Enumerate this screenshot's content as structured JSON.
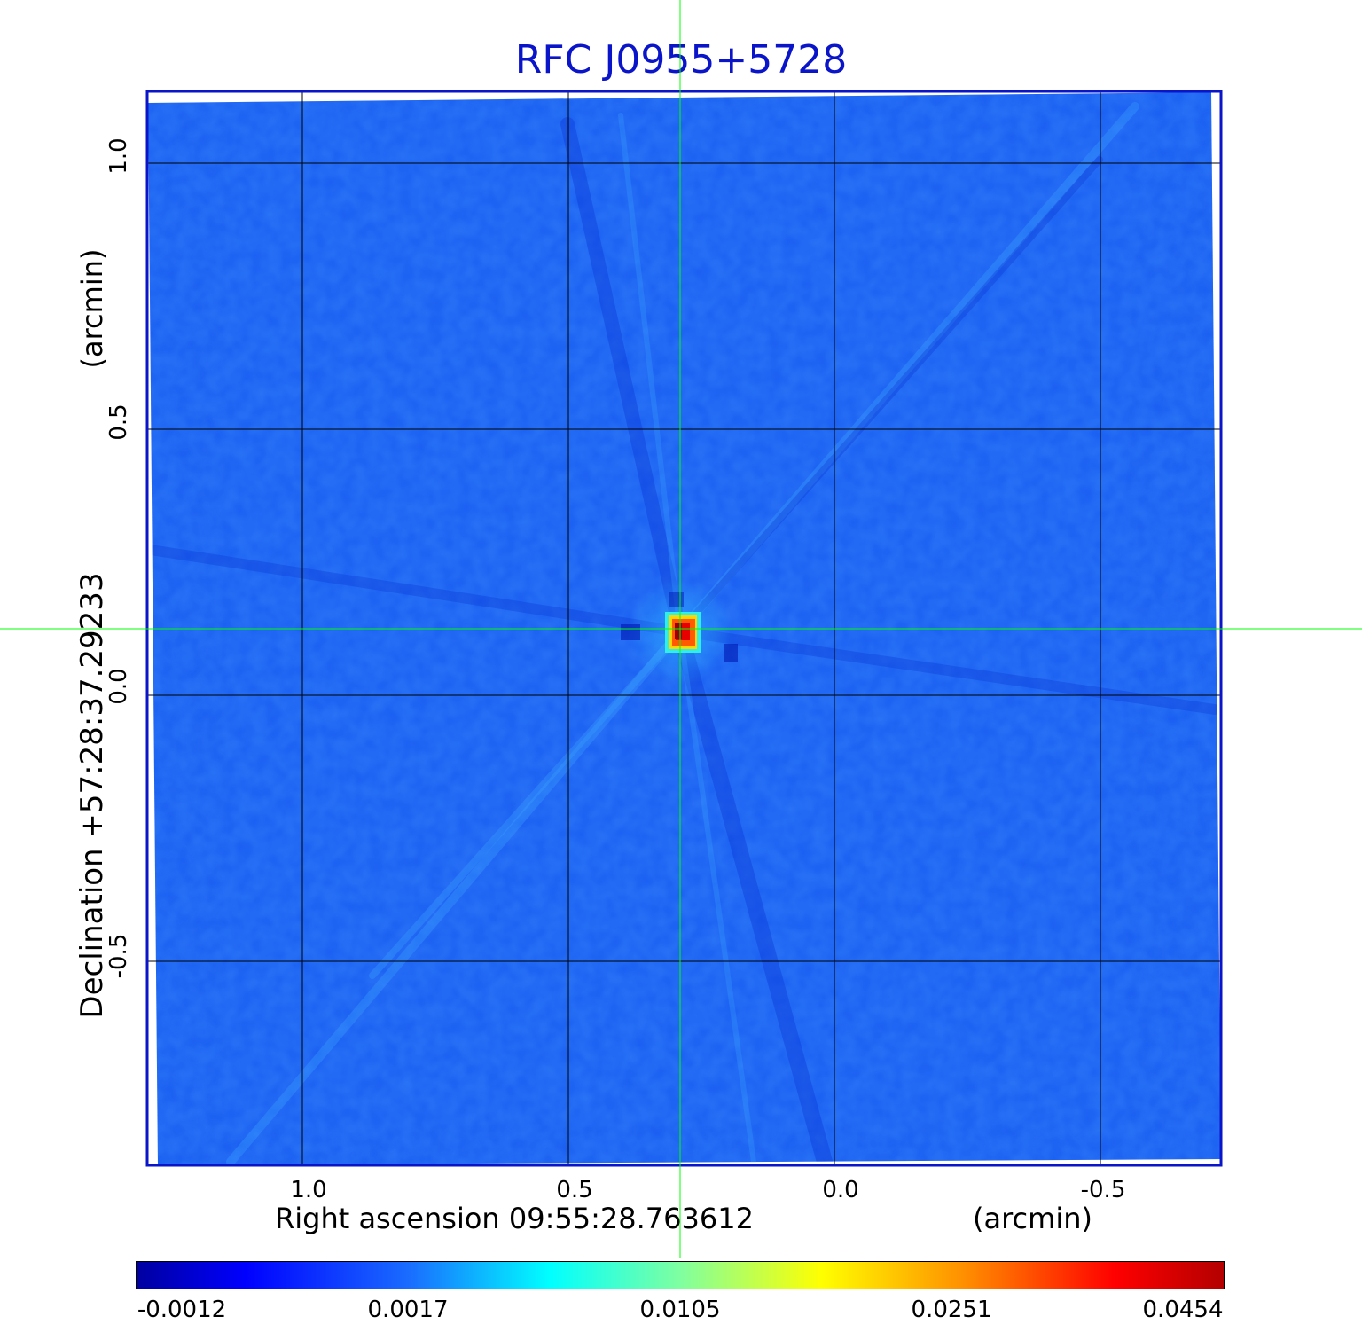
{
  "title": "RFC J0955+5728",
  "axes": {
    "x_label": "Right ascension  09:55:28.763612",
    "x_unit": "(arcmin)",
    "y_label": "Declination  +57:28:37.29233",
    "y_unit": "(arcmin)",
    "x_ticks": [
      "1.0",
      "0.5",
      "0.0",
      "-0.5"
    ],
    "y_ticks": [
      "1.0",
      "0.5",
      "0.0",
      "-0.5"
    ]
  },
  "colorbar": {
    "colormap": "jet",
    "labels": [
      "-0.0012",
      "0.0017",
      "0.0105",
      "0.0251",
      "0.0454"
    ]
  },
  "colors": {
    "title": "#0a14c8",
    "frame": "#0a14c8",
    "crosshair": "#00ff00",
    "background_field": "#1a5cf0",
    "source_peak": "#b40000"
  },
  "chart_data": {
    "type": "heatmap",
    "title": "RFC J0955+5728",
    "xlabel": "Right ascension  09:55:28.763612",
    "ylabel": "Declination  +57:28:37.29233",
    "x_unit": "arcmin",
    "y_unit": "arcmin",
    "xlim": [
      1.29,
      -0.73
    ],
    "ylim": [
      -0.88,
      1.14
    ],
    "x_ticks": [
      1.0,
      0.5,
      0.0,
      -0.5
    ],
    "y_ticks": [
      1.0,
      0.5,
      0.0,
      -0.5
    ],
    "grid": true,
    "crosshair": {
      "x": 0.29,
      "y": 0.125
    },
    "source": {
      "x": 0.29,
      "y": 0.125,
      "peak": 0.0454
    },
    "color_range": [
      -0.0012,
      0.0454
    ],
    "colorbar_ticks": [
      -0.0012,
      0.0017,
      0.0105,
      0.0251,
      0.0454
    ],
    "colormap": "jet",
    "legend": "colorbar-bottom"
  }
}
